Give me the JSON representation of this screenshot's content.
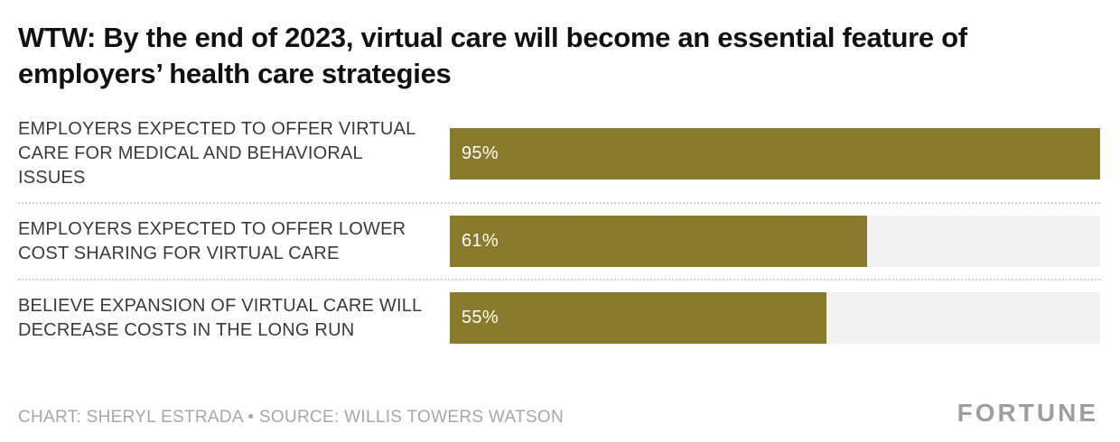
{
  "title": "WTW: By the end of 2023, virtual care will become an essential feature of employers’ health care strategies",
  "footer": {
    "credit": "CHART: SHERYL ESTRADA • SOURCE: WILLIS TOWERS WATSON",
    "brand": "FORTUNE"
  },
  "colors": {
    "bar": "#8a7a2b",
    "track": "#f2f2f2",
    "title_text": "#111111",
    "label_text": "#3a3a3a",
    "footer_text": "#a7a7a7"
  },
  "chart_data": {
    "type": "bar",
    "orientation": "horizontal",
    "title": "WTW: By the end of 2023, virtual care will become an essential feature of employers’ health care strategies",
    "categories": [
      "EMPLOYERS EXPECTED TO OFFER VIRTUAL CARE FOR MEDICAL AND BEHAVIORAL ISSUES",
      "EMPLOYERS EXPECTED TO OFFER LOWER COST SHARING FOR VIRTUAL CARE",
      "BELIEVE EXPANSION OF VIRTUAL CARE WILL DECREASE COSTS IN THE LONG RUN"
    ],
    "values": [
      95,
      61,
      55
    ],
    "value_labels": [
      "95%",
      "61%",
      "55%"
    ],
    "xlabel": "",
    "ylabel": "",
    "xlim": [
      0,
      95
    ],
    "grid": false,
    "legend": "none"
  }
}
